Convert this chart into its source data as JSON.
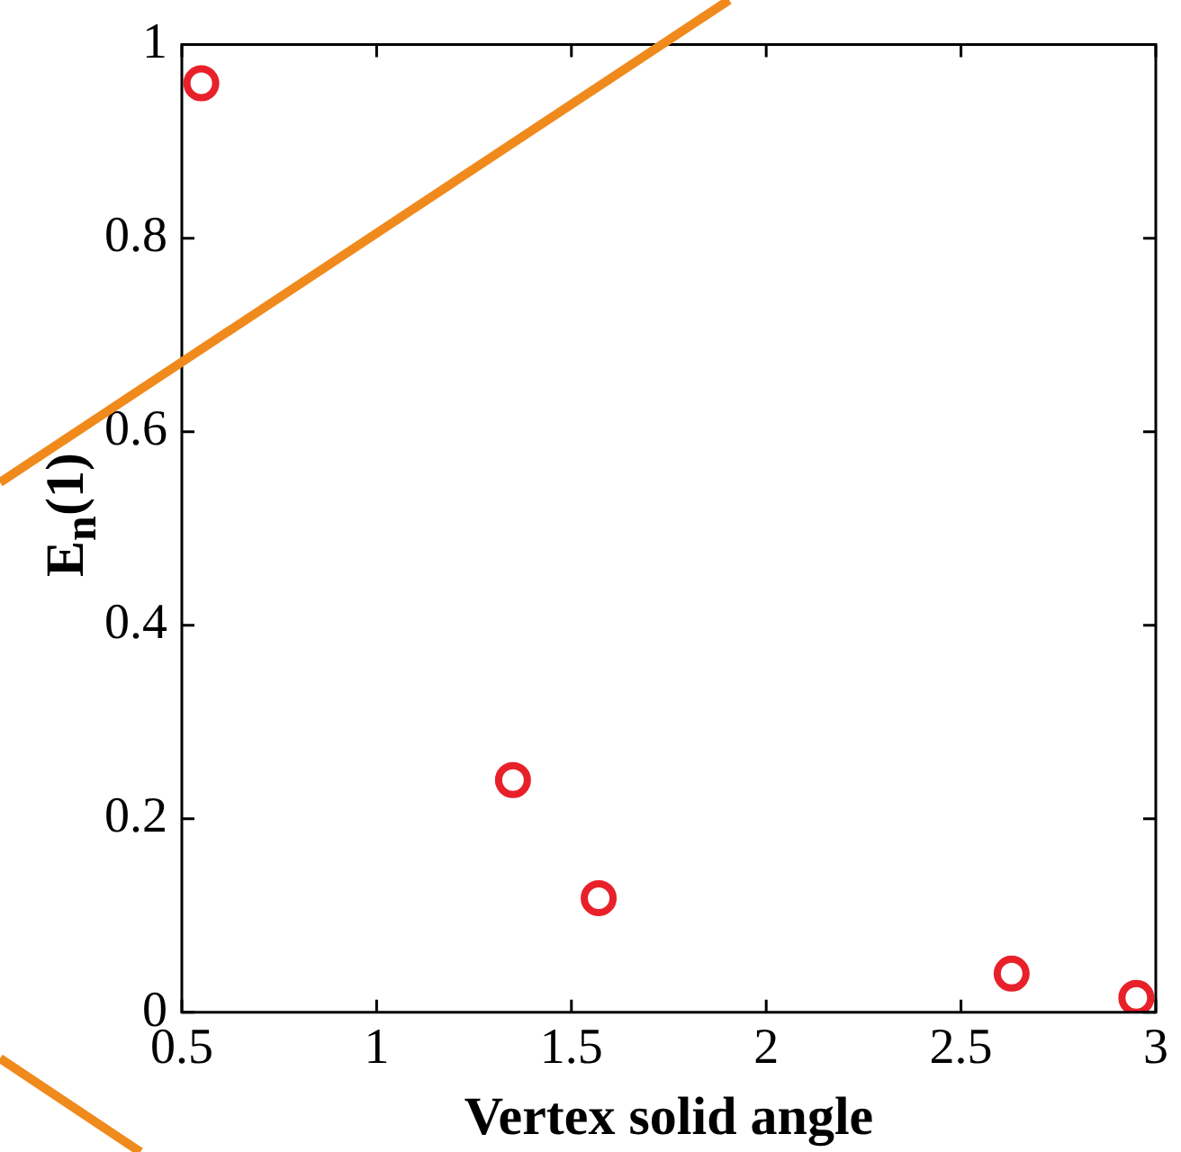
{
  "chart_data": {
    "type": "scatter",
    "xlabel": "Vertex solid angle",
    "ylabel": "E$_{n}$(1)",
    "x": [
      0.55,
      1.35,
      1.57,
      2.63,
      2.95
    ],
    "series": [
      {
        "color": "#e8202a",
        "values": [
          0.96,
          0.24,
          0.118,
          0.04,
          0.015
        ]
      }
    ],
    "xlim": [
      0.5,
      3
    ],
    "xticks": [
      0.5,
      1,
      1.5,
      2,
      2.5,
      3
    ],
    "ylim": [
      0,
      1
    ],
    "yticks": [
      0,
      0.2,
      0.4,
      0.6,
      0.8,
      1
    ],
    "marker": "circle",
    "grid": false,
    "legend": false
  }
}
